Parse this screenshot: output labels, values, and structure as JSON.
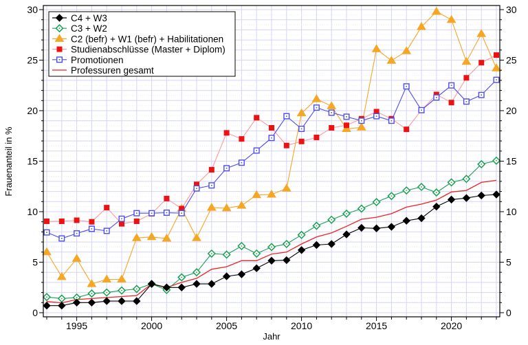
{
  "chart_data": {
    "type": "line",
    "title": "",
    "xlabel": "Jahr",
    "ylabel": "Frauenanteil in %",
    "xlim": [
      1993,
      2023
    ],
    "ylim": [
      0,
      30
    ],
    "x_ticks": [
      1995,
      2000,
      2005,
      2010,
      2015,
      2020
    ],
    "y_ticks": [
      0,
      5,
      10,
      15,
      20,
      25,
      30
    ],
    "y_ticks_right": [
      0,
      5,
      10,
      15,
      20,
      25,
      30
    ],
    "grid": true,
    "legend_position": "upper left",
    "x": [
      1993,
      1994,
      1995,
      1996,
      1997,
      1998,
      1999,
      2000,
      2001,
      2002,
      2003,
      2004,
      2005,
      2006,
      2007,
      2008,
      2009,
      2010,
      2011,
      2012,
      2013,
      2014,
      2015,
      2016,
      2017,
      2018,
      2019,
      2020,
      2021,
      2022,
      2023
    ],
    "series": [
      {
        "name": "C4 + W3",
        "color": "#000000",
        "marker": "diamond-filled",
        "values": [
          0.7,
          0.7,
          1.0,
          1.0,
          1.15,
          1.15,
          1.15,
          2.85,
          2.5,
          2.5,
          2.85,
          2.85,
          3.6,
          3.8,
          4.4,
          5.15,
          5.2,
          6.2,
          6.7,
          6.8,
          7.75,
          8.4,
          8.35,
          8.5,
          9.1,
          9.35,
          10.5,
          11.2,
          11.35,
          11.6,
          11.7
        ]
      },
      {
        "name": "C3 + W2",
        "color": "#17a050",
        "marker": "diamond-open",
        "values": [
          1.55,
          1.4,
          1.5,
          1.9,
          2.0,
          2.2,
          2.35,
          2.85,
          2.25,
          3.5,
          4.0,
          5.85,
          5.75,
          6.6,
          5.85,
          6.5,
          6.8,
          7.7,
          8.6,
          9.2,
          9.8,
          10.3,
          10.95,
          11.55,
          12.1,
          12.45,
          11.9,
          12.9,
          13.25,
          14.7,
          15.05
        ]
      },
      {
        "name": "C2 (befr) + W1 (befr) + Habilitationen",
        "color": "#f5a623",
        "marker": "triangle-filled",
        "values": [
          6.0,
          3.55,
          5.35,
          2.85,
          3.3,
          3.3,
          7.4,
          7.5,
          7.35,
          10.3,
          7.4,
          10.4,
          10.35,
          10.6,
          11.65,
          11.7,
          12.3,
          19.75,
          21.15,
          20.45,
          18.2,
          18.35,
          26.1,
          24.95,
          25.9,
          28.3,
          29.8,
          29.0,
          24.85,
          27.6,
          24.2
        ]
      },
      {
        "name": "Studienabschlüsse (Master + Diplom)",
        "color": "#ff9a9a",
        "marker_color": "#ee1111",
        "marker": "square-filled",
        "values": [
          9.05,
          9.05,
          9.15,
          9.0,
          10.4,
          8.8,
          9.05,
          9.8,
          11.3,
          10.3,
          12.7,
          14.15,
          17.8,
          17.2,
          19.3,
          18.3,
          16.55,
          16.95,
          17.35,
          18.3,
          18.55,
          19.2,
          19.9,
          19.2,
          18.15,
          20.05,
          21.6,
          20.8,
          23.25,
          24.75,
          25.5
        ]
      },
      {
        "name": "Promotionen",
        "color": "#4b4bf0",
        "marker": "square-open",
        "values": [
          7.95,
          7.35,
          7.85,
          8.3,
          8.1,
          9.3,
          9.85,
          9.85,
          9.9,
          9.85,
          12.3,
          12.6,
          14.3,
          14.85,
          16.05,
          17.3,
          19.45,
          18.2,
          20.3,
          19.8,
          19.4,
          19.0,
          19.45,
          19.0,
          22.4,
          20.05,
          21.3,
          22.5,
          20.9,
          21.55,
          23.05
        ]
      },
      {
        "name": "Professuren gesamt",
        "color": "#ee2222",
        "marker": "none",
        "values": [
          1.1,
          0.98,
          1.3,
          1.4,
          1.5,
          1.6,
          1.7,
          2.85,
          2.5,
          3.0,
          3.4,
          4.3,
          4.55,
          5.15,
          5.15,
          5.8,
          6.0,
          6.8,
          7.5,
          7.9,
          8.55,
          9.25,
          9.45,
          9.8,
          10.45,
          10.75,
          11.15,
          11.95,
          12.1,
          12.9,
          13.1
        ]
      }
    ]
  },
  "axes": {
    "xlabel": "Jahr",
    "ylabel": "Frauenanteil in %"
  },
  "legend": {
    "items": [
      {
        "label": "C4 + W3"
      },
      {
        "label": "C3 + W2"
      },
      {
        "label": "C2 (befr) + W1 (befr) + Habilitationen"
      },
      {
        "label": "Studienabschlüsse (Master + Diplom)"
      },
      {
        "label": "Promotionen"
      },
      {
        "label": "Professuren gesamt"
      }
    ]
  },
  "colors": {
    "grid": "#d4d4f6",
    "frame": "#000000",
    "background": "#ffffff"
  }
}
